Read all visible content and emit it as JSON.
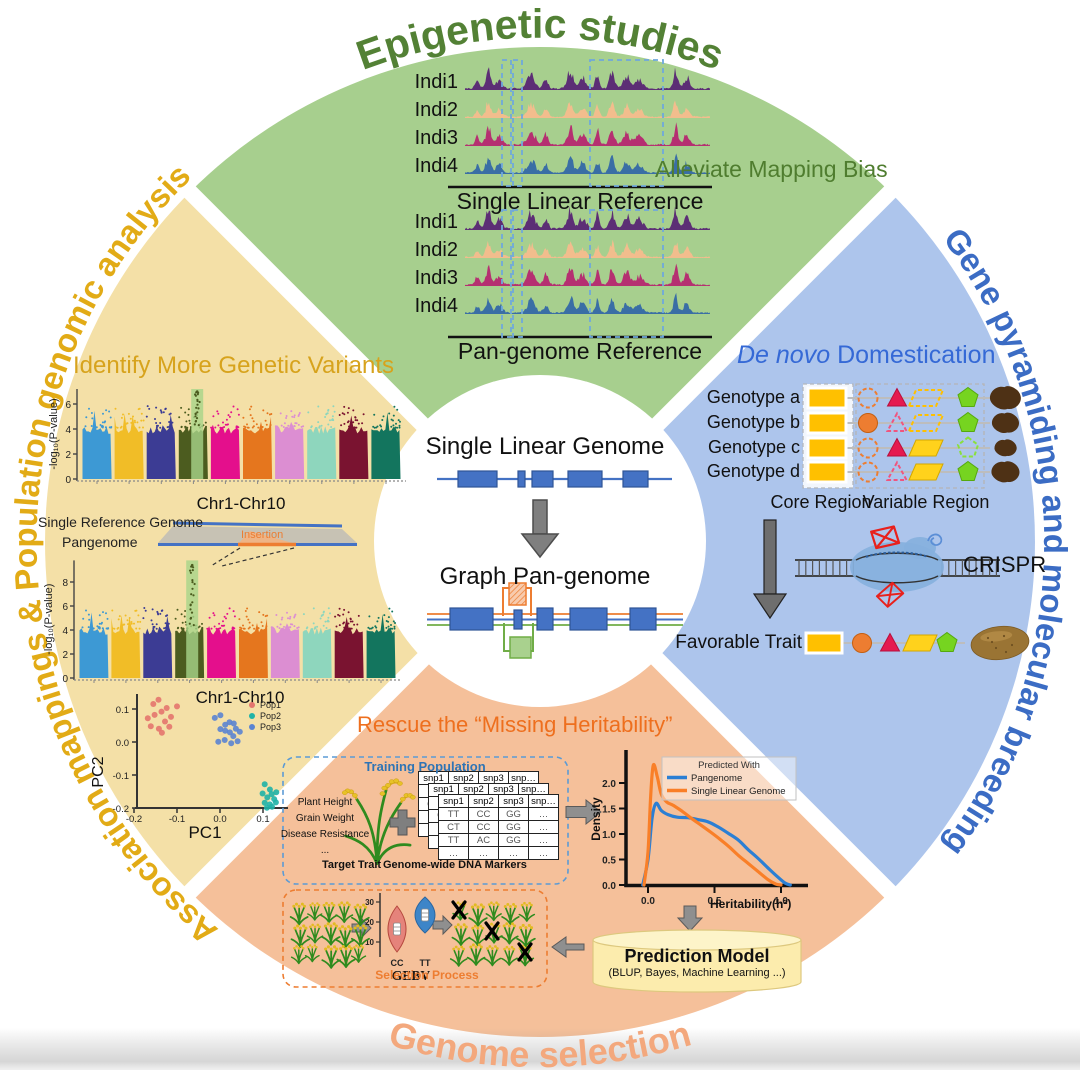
{
  "palette": {
    "sector_green": "#a7cf8e",
    "sector_yellow": "#f4e0a7",
    "sector_blue": "#adc5ec",
    "sector_orange": "#f5c09a",
    "title_green": "#538135",
    "title_gold": "#e2ab16",
    "title_blue": "#3b6cc4",
    "title_orange": "#ee6f1e",
    "title_orange_light": "#f3a87d",
    "gene_blue": "#4472c4",
    "arrow_gray": "#8f8f8f"
  },
  "titles": {
    "top": "Epigenetic studies",
    "left": "Association mappings & Population genomic analysis",
    "right": "Gene pyramiding and molecular breeding",
    "bottom": "Genome selection"
  },
  "center": {
    "linear": "Single Linear Genome",
    "graph": "Graph Pan-genome"
  },
  "epigenetics": {
    "labels1": [
      "Indi1",
      "Indi2",
      "Indi3",
      "Indi4"
    ],
    "labels2": [
      "Indi1",
      "Indi2",
      "Indi3",
      "Indi4"
    ],
    "ref1": "Single Linear Reference",
    "ref2": "Pan-genome Reference",
    "note": "Alleviate Mapping Bias",
    "track_colors": [
      "#5c2e75",
      "#f2bd8d",
      "#b53071",
      "#3a6ea5"
    ]
  },
  "association": {
    "title": "Identify More Genetic Variants",
    "wedge_top": "Single Reference Genome",
    "wedge_bottom": "Pangenome",
    "insertion": "Insertion"
  },
  "breeding": {
    "title_italic": "De novo",
    "title_rest": " Domestication",
    "core": "Core Region",
    "variable": "Variable Region",
    "crispr": "CRISPR",
    "favorable": "Favorable Trait",
    "shape_colors": {
      "core": "#ffc000",
      "circle": "#ed7d31",
      "circle_d": "#c55f11",
      "tri": "#e51a4f",
      "tri_d": "#b80f3c",
      "tri_o": "#f0557e",
      "para": "#ffd21c",
      "para_d": "#d4a800",
      "para_o": "#ffc000",
      "pent": "#76d420",
      "pent_d": "#56a90e",
      "pent_o": "#8ae03c"
    },
    "genotypes": [
      {
        "label": "Genotype a",
        "shapes": [
          "circle:o",
          "triangle:f",
          "para:o",
          "pent:f"
        ],
        "tuber": 16
      },
      {
        "label": "Genotype b",
        "shapes": [
          "circle:f",
          "triangle:o",
          "para:o",
          "pent:f"
        ],
        "tuber": 14
      },
      {
        "label": "Genotype c",
        "shapes": [
          "circle:o",
          "triangle:f",
          "para:f",
          "pent:o"
        ],
        "tuber": 11.5
      },
      {
        "label": "Genotype d",
        "shapes": [
          "circle:o",
          "triangle:o",
          "para:f",
          "pent:f"
        ],
        "tuber": 14.5
      }
    ]
  },
  "genome_selection": {
    "title": "Rescue the “Missing Heritability”",
    "training": {
      "title": "Training Population",
      "traits": [
        "Plant Height",
        "Grain Weight",
        "Disease Resistance",
        "..."
      ],
      "target": "Target Trait",
      "markers": "Genome-wide DNA Markers",
      "table": {
        "header": [
          "snp1",
          "snp2",
          "snp3",
          "snp…"
        ],
        "rows": [
          [
            "TT",
            "CC",
            "GG",
            "…"
          ],
          [
            "CT",
            "CC",
            "GG",
            "…"
          ],
          [
            "TT",
            "AC",
            "GG",
            "…"
          ],
          [
            "…",
            "…",
            "…",
            "…"
          ]
        ]
      }
    },
    "model": {
      "title": "Prediction Model",
      "subtitle": "(BLUP, Bayes, Machine Learning ...)"
    },
    "process_label": "Selection Process"
  },
  "chart_data": [
    {
      "type": "manhattan",
      "ylabel": "-log₁₀(P-value)",
      "xlabel": "Chr1-Chr10",
      "yticks": [
        0,
        2,
        4,
        6
      ],
      "ymax": 7.2,
      "baseline_range": [
        3.6,
        5.8
      ],
      "colors": [
        "#3d99d4",
        "#f1bd27",
        "#3c3c94",
        "#4c5c1f",
        "#e40f8c",
        "#e5761e",
        "#dc8ed2",
        "#8ed6bd",
        "#7a1330",
        "#13755e"
      ],
      "highlight": {
        "chrom": 3,
        "pos": 0.62,
        "peak": 7.0,
        "band": "#a8d489"
      }
    },
    {
      "type": "manhattan",
      "ylabel": "-log₁₀(P-value)",
      "xlabel": "Chr1-Chr10",
      "yticks": [
        0,
        2,
        4,
        6,
        8
      ],
      "ymax": 9.8,
      "baseline_range": [
        3.6,
        5.8
      ],
      "colors": [
        "#3d99d4",
        "#f1bd27",
        "#3c3c94",
        "#4c5c1f",
        "#e40f8c",
        "#e5761e",
        "#dc8ed2",
        "#8ed6bd",
        "#7a1330",
        "#13755e"
      ],
      "highlight": {
        "chrom": 3,
        "pos": 0.58,
        "peak": 9.4,
        "band": "#a8d489"
      }
    },
    {
      "type": "scatter",
      "xlabel": "PC1",
      "ylabel": "PC2",
      "xticks": [
        "-0.2",
        "-0.1",
        "0.0",
        "0.1"
      ],
      "yticks": [
        "0.1",
        "0.0",
        "-0.1",
        "-0.2"
      ],
      "series": [
        {
          "name": "Pop1",
          "color": "#e4756e",
          "points": [
            [
              -0.155,
              0.115
            ],
            [
              -0.143,
              0.128
            ],
            [
              -0.168,
              0.072
            ],
            [
              -0.152,
              0.082
            ],
            [
              -0.136,
              0.092
            ],
            [
              -0.124,
              0.103
            ],
            [
              -0.161,
              0.048
            ],
            [
              -0.142,
              0.04
            ],
            [
              -0.128,
              0.062
            ],
            [
              -0.114,
              0.076
            ],
            [
              -0.1,
              0.108
            ],
            [
              -0.135,
              0.028
            ],
            [
              -0.118,
              0.046
            ]
          ]
        },
        {
          "name": "Pop2",
          "color": "#1fb3a7",
          "points": [
            [
              0.104,
              -0.128
            ],
            [
              0.116,
              -0.144
            ],
            [
              0.099,
              -0.156
            ],
            [
              0.12,
              -0.158
            ],
            [
              0.131,
              -0.152
            ],
            [
              0.11,
              -0.168
            ],
            [
              0.126,
              -0.173
            ],
            [
              0.104,
              -0.184
            ],
            [
              0.116,
              -0.189
            ],
            [
              0.13,
              -0.183
            ],
            [
              0.121,
              -0.196
            ],
            [
              0.109,
              -0.199
            ]
          ]
        },
        {
          "name": "Pop3",
          "color": "#5b84d2",
          "points": [
            [
              -0.012,
              0.073
            ],
            [
              0.001,
              0.081
            ],
            [
              0.012,
              0.052
            ],
            [
              0.022,
              0.06
            ],
            [
              0.032,
              0.056
            ],
            [
              0.037,
              0.04
            ],
            [
              0.001,
              0.039
            ],
            [
              0.012,
              0.034
            ],
            [
              0.023,
              0.029
            ],
            [
              0.046,
              0.031
            ],
            [
              0.031,
              0.018
            ],
            [
              -0.004,
              0.001
            ],
            [
              0.011,
              0.006
            ],
            [
              0.026,
              -0.004
            ],
            [
              0.041,
              0.002
            ]
          ]
        }
      ]
    },
    {
      "type": "line",
      "ylabel": "Density",
      "xlabel": "Heritability(h²)",
      "legend_title": "Predicted With",
      "xticks": [
        "0.0",
        "0.5",
        "1.0"
      ],
      "yticks": [
        "0.0",
        "0.5",
        "1.0",
        "1.5",
        "2.0"
      ],
      "series": [
        {
          "name": "Pangenome",
          "color": "#2b7fd4",
          "points": [
            [
              -0.04,
              0
            ],
            [
              0,
              0.5
            ],
            [
              0.03,
              1.3
            ],
            [
              0.06,
              1.6
            ],
            [
              0.1,
              1.46
            ],
            [
              0.15,
              1.38
            ],
            [
              0.22,
              1.33
            ],
            [
              0.3,
              1.32
            ],
            [
              0.38,
              1.28
            ],
            [
              0.45,
              1.24
            ],
            [
              0.52,
              1.15
            ],
            [
              0.6,
              1.02
            ],
            [
              0.68,
              0.88
            ],
            [
              0.75,
              0.7
            ],
            [
              0.82,
              0.54
            ],
            [
              0.9,
              0.34
            ],
            [
              0.97,
              0.17
            ],
            [
              1.03,
              0.04
            ],
            [
              1.07,
              0
            ]
          ]
        },
        {
          "name": "Single Linear Genome",
          "color": "#f97f28",
          "points": [
            [
              -0.03,
              0
            ],
            [
              0,
              0.65
            ],
            [
              0.02,
              1.75
            ],
            [
              0.04,
              2.35
            ],
            [
              0.07,
              2.12
            ],
            [
              0.1,
              1.78
            ],
            [
              0.14,
              1.63
            ],
            [
              0.19,
              1.56
            ],
            [
              0.26,
              1.44
            ],
            [
              0.33,
              1.3
            ],
            [
              0.4,
              1.17
            ],
            [
              0.47,
              1.04
            ],
            [
              0.54,
              0.9
            ],
            [
              0.61,
              0.75
            ],
            [
              0.68,
              0.58
            ],
            [
              0.75,
              0.43
            ],
            [
              0.82,
              0.28
            ],
            [
              0.9,
              0.11
            ],
            [
              0.96,
              0.02
            ],
            [
              1,
              0
            ]
          ]
        }
      ]
    },
    {
      "type": "violin",
      "xlabel": "GEBV",
      "categories": [
        "CC",
        "TT"
      ],
      "yticks": [
        10,
        20,
        30
      ],
      "colors": [
        "#e5837b",
        "#3d85c8"
      ],
      "medians": [
        16,
        24
      ]
    }
  ]
}
